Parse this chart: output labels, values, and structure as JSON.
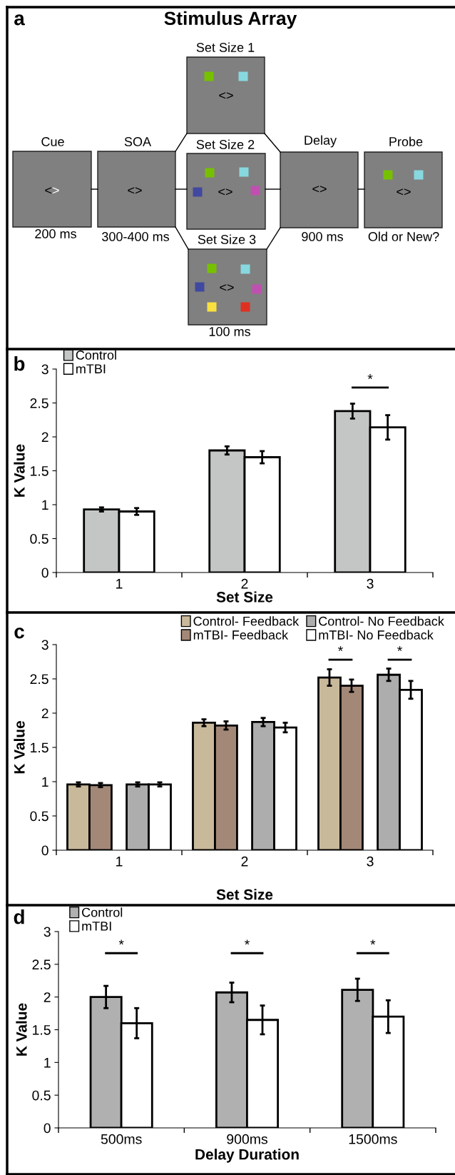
{
  "chart_data": [
    {
      "type": "other",
      "title": "Stimulus Array",
      "annotations": [
        "a",
        "Cue",
        "SOA",
        "Set Size 1",
        "Set Size 2",
        "Set Size 3",
        "Delay",
        "Probe",
        "200 ms",
        "300-400 ms",
        "900 ms",
        "Old or New?",
        "100 ms",
        "<>",
        "<>",
        "<>",
        "<>",
        "<>",
        "<>",
        "<>"
      ]
    },
    {
      "type": "bar",
      "categories": [
        "1",
        "2",
        "3"
      ],
      "xlabel": "Set Size",
      "ylabel": "K Value",
      "ylim": [
        0,
        3
      ],
      "yticks": [
        0,
        0.5,
        1,
        1.5,
        2,
        2.5,
        3
      ],
      "legend": "top left",
      "annotations": [
        "b",
        "*"
      ],
      "series": [
        {
          "name": "Control",
          "color": "#c4c6c6",
          "values": [
            0.93,
            1.8,
            2.38
          ],
          "errors": [
            0.03,
            0.06,
            0.11
          ]
        },
        {
          "name": "mTBI",
          "color": "#ffffff",
          "values": [
            0.9,
            1.7,
            2.14
          ],
          "errors": [
            0.05,
            0.09,
            0.18
          ]
        }
      ]
    },
    {
      "type": "bar",
      "categories": [
        "1",
        "2",
        "3"
      ],
      "xlabel": "Set Size",
      "ylabel": "K Value",
      "ylim": [
        0,
        3
      ],
      "yticks": [
        0,
        0.5,
        1,
        1.5,
        2,
        2.5,
        3
      ],
      "legend": "top right",
      "annotations": [
        "c",
        "*",
        "*"
      ],
      "series": [
        {
          "name": "Control- Feedback",
          "color": "#c9b99b",
          "values": [
            0.96,
            1.86,
            2.52
          ],
          "errors": [
            0.03,
            0.05,
            0.12
          ]
        },
        {
          "name": "mTBI- Feedback",
          "color": "#a38878",
          "values": [
            0.95,
            1.82,
            2.4
          ],
          "errors": [
            0.03,
            0.06,
            0.09
          ]
        },
        {
          "name": "Control- No Feedback",
          "color": "#adadad",
          "values": [
            0.96,
            1.87,
            2.56
          ],
          "errors": [
            0.03,
            0.06,
            0.09
          ]
        },
        {
          "name": "mTBI- No Feedback",
          "color": "#ffffff",
          "values": [
            0.96,
            1.79,
            2.34
          ],
          "errors": [
            0.03,
            0.07,
            0.13
          ]
        }
      ]
    },
    {
      "type": "bar",
      "categories": [
        "500ms",
        "900ms",
        "1500ms"
      ],
      "xlabel": "Delay Duration",
      "ylabel": "K Value",
      "ylim": [
        0,
        3
      ],
      "yticks": [
        0,
        0.5,
        1,
        1.5,
        2,
        2.5,
        3
      ],
      "legend": "top left",
      "annotations": [
        "d",
        "*",
        "*",
        "*"
      ],
      "series": [
        {
          "name": "Control",
          "color": "#b0b0b0",
          "values": [
            2.0,
            2.07,
            2.11
          ],
          "errors": [
            0.17,
            0.15,
            0.17
          ]
        },
        {
          "name": "mTBI",
          "color": "#ffffff",
          "values": [
            1.6,
            1.65,
            1.7
          ],
          "errors": [
            0.23,
            0.22,
            0.25
          ]
        }
      ]
    }
  ]
}
